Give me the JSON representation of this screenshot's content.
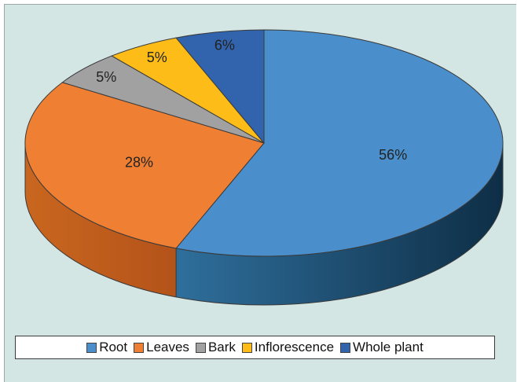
{
  "chart_data": {
    "type": "pie",
    "three_d": true,
    "legend_position": "bottom",
    "series": [
      {
        "name": "Root",
        "value": 56,
        "label": "56%",
        "color": "#4a8fcc",
        "side_dark": "#0e2e46",
        "side_light": "#2f6f9c"
      },
      {
        "name": "Leaves",
        "value": 28,
        "label": "28%",
        "color": "#ef7f32",
        "side_dark": "#b4531a",
        "side_light": "#c9661f"
      },
      {
        "name": "Bark",
        "value": 5,
        "label": "5%",
        "color": "#a1a1a1",
        "side_dark": "#707070",
        "side_light": "#8a8a8a"
      },
      {
        "name": "Inflorescence",
        "value": 5,
        "label": "5%",
        "color": "#fdbc17",
        "side_dark": "#b88206",
        "side_light": "#d49a10"
      },
      {
        "name": "Whole plant",
        "value": 6,
        "label": "6%",
        "color": "#3264ad",
        "side_dark": "#1b3d6e",
        "side_light": "#274f8a"
      }
    ]
  }
}
